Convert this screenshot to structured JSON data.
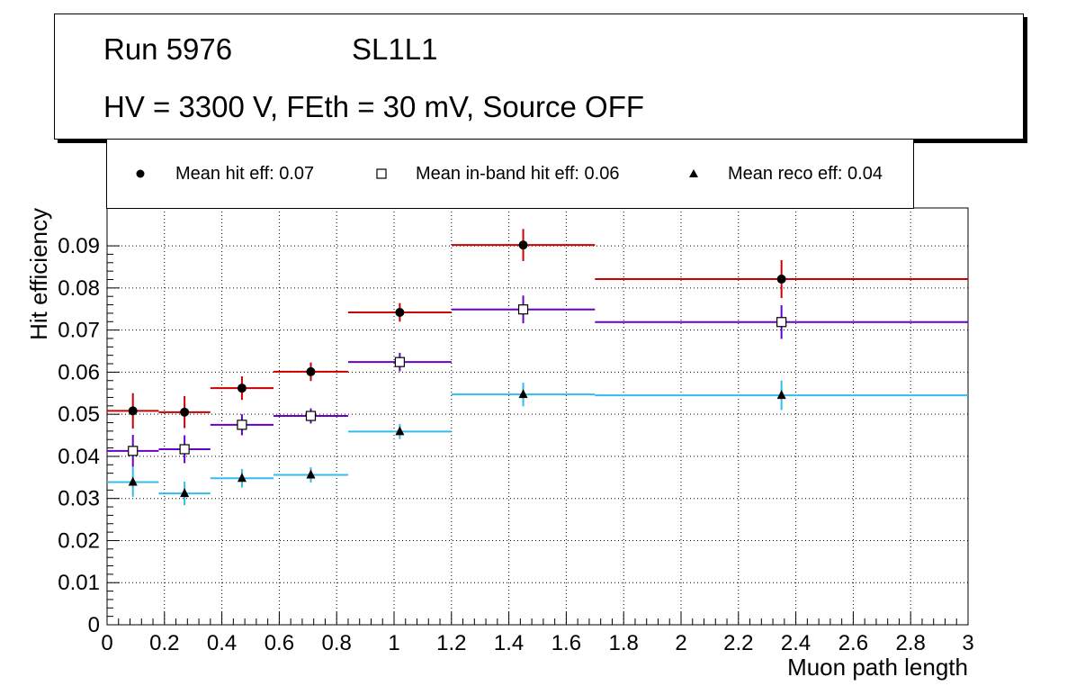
{
  "header": {
    "run": "Run 5976",
    "layer": "SL1L1",
    "conditions": "HV = 3300 V, FEth = 30 mV, Source OFF"
  },
  "legend": {
    "hit_label": "Mean hit  eff: 0.07",
    "inband_label": "Mean in-band hit eff: 0.06",
    "reco_label": "Mean reco eff: 0.04"
  },
  "chart_data": {
    "type": "scatter",
    "xlabel": "Muon path length",
    "ylabel": "Hit efficiency",
    "xlim": [
      0,
      3
    ],
    "ylim": [
      0,
      0.099
    ],
    "x_ticks": [
      0,
      0.2,
      0.4,
      0.6,
      0.8,
      1,
      1.2,
      1.4,
      1.6,
      1.8,
      2,
      2.2,
      2.4,
      2.6,
      2.8,
      3
    ],
    "x_tick_labels": [
      "0",
      "0.2",
      "0.4",
      "0.6",
      "0.8",
      "1",
      "1.2",
      "1.4",
      "1.6",
      "1.8",
      "2",
      "2.2",
      "2.4",
      "2.6",
      "2.8",
      "3"
    ],
    "y_ticks": [
      0,
      0.01,
      0.02,
      0.03,
      0.04,
      0.05,
      0.06,
      0.07,
      0.08,
      0.09
    ],
    "y_tick_labels": [
      "0",
      "0.01",
      "0.02",
      "0.03",
      "0.04",
      "0.05",
      "0.06",
      "0.07",
      "0.08",
      "0.09"
    ],
    "grid": true,
    "bins": [
      [
        0,
        0.18
      ],
      [
        0.18,
        0.36
      ],
      [
        0.36,
        0.58
      ],
      [
        0.58,
        0.84
      ],
      [
        0.84,
        1.2
      ],
      [
        1.2,
        1.7
      ],
      [
        1.7,
        1.7
      ],
      [
        1.7,
        3.0
      ]
    ],
    "series": [
      {
        "name": "Mean hit  eff: 0.07",
        "color": "#cc0000",
        "marker": "circle",
        "points": [
          {
            "x": 0.09,
            "y": 0.0508,
            "xlo": 0.0,
            "xhi": 0.18,
            "yerr": 0.0042
          },
          {
            "x": 0.27,
            "y": 0.0505,
            "xlo": 0.18,
            "xhi": 0.36,
            "yerr": 0.0038
          },
          {
            "x": 0.47,
            "y": 0.0562,
            "xlo": 0.36,
            "xhi": 0.58,
            "yerr": 0.0028
          },
          {
            "x": 0.71,
            "y": 0.0601,
            "xlo": 0.58,
            "xhi": 0.84,
            "yerr": 0.0022
          },
          {
            "x": 1.02,
            "y": 0.0742,
            "xlo": 0.84,
            "xhi": 1.2,
            "yerr": 0.0022
          },
          {
            "x": 1.45,
            "y": 0.0902,
            "xlo": 1.2,
            "xhi": 1.7,
            "yerr": 0.0038
          },
          {
            "x": 2.35,
            "y": 0.0821,
            "xlo": 1.7,
            "xhi": 3.0,
            "yerr": 0.0045
          }
        ]
      },
      {
        "name": "Mean in-band hit eff: 0.06",
        "color": "#6600cc",
        "marker": "open-square",
        "points": [
          {
            "x": 0.09,
            "y": 0.0413,
            "xlo": 0.0,
            "xhi": 0.18,
            "yerr": 0.0038
          },
          {
            "x": 0.27,
            "y": 0.0417,
            "xlo": 0.18,
            "xhi": 0.36,
            "yerr": 0.0033
          },
          {
            "x": 0.47,
            "y": 0.0475,
            "xlo": 0.36,
            "xhi": 0.58,
            "yerr": 0.0025
          },
          {
            "x": 0.71,
            "y": 0.0496,
            "xlo": 0.58,
            "xhi": 0.84,
            "yerr": 0.0018
          },
          {
            "x": 1.02,
            "y": 0.0624,
            "xlo": 0.84,
            "xhi": 1.2,
            "yerr": 0.0022
          },
          {
            "x": 1.45,
            "y": 0.0749,
            "xlo": 1.2,
            "xhi": 1.7,
            "yerr": 0.0033
          },
          {
            "x": 2.35,
            "y": 0.0719,
            "xlo": 1.7,
            "xhi": 3.0,
            "yerr": 0.004
          }
        ]
      },
      {
        "name": "Mean reco eff: 0.04",
        "color": "#33bbee",
        "marker": "triangle",
        "points": [
          {
            "x": 0.09,
            "y": 0.0339,
            "xlo": 0.0,
            "xhi": 0.18,
            "yerr": 0.0035
          },
          {
            "x": 0.27,
            "y": 0.0312,
            "xlo": 0.18,
            "xhi": 0.36,
            "yerr": 0.0028
          },
          {
            "x": 0.47,
            "y": 0.0348,
            "xlo": 0.36,
            "xhi": 0.58,
            "yerr": 0.0022
          },
          {
            "x": 0.71,
            "y": 0.0356,
            "xlo": 0.58,
            "xhi": 0.84,
            "yerr": 0.0018
          },
          {
            "x": 1.02,
            "y": 0.0459,
            "xlo": 0.84,
            "xhi": 1.2,
            "yerr": 0.0018
          },
          {
            "x": 1.45,
            "y": 0.0547,
            "xlo": 1.2,
            "xhi": 1.7,
            "yerr": 0.0028
          },
          {
            "x": 2.35,
            "y": 0.0545,
            "xlo": 1.7,
            "xhi": 3.0,
            "yerr": 0.0035
          }
        ]
      }
    ]
  }
}
